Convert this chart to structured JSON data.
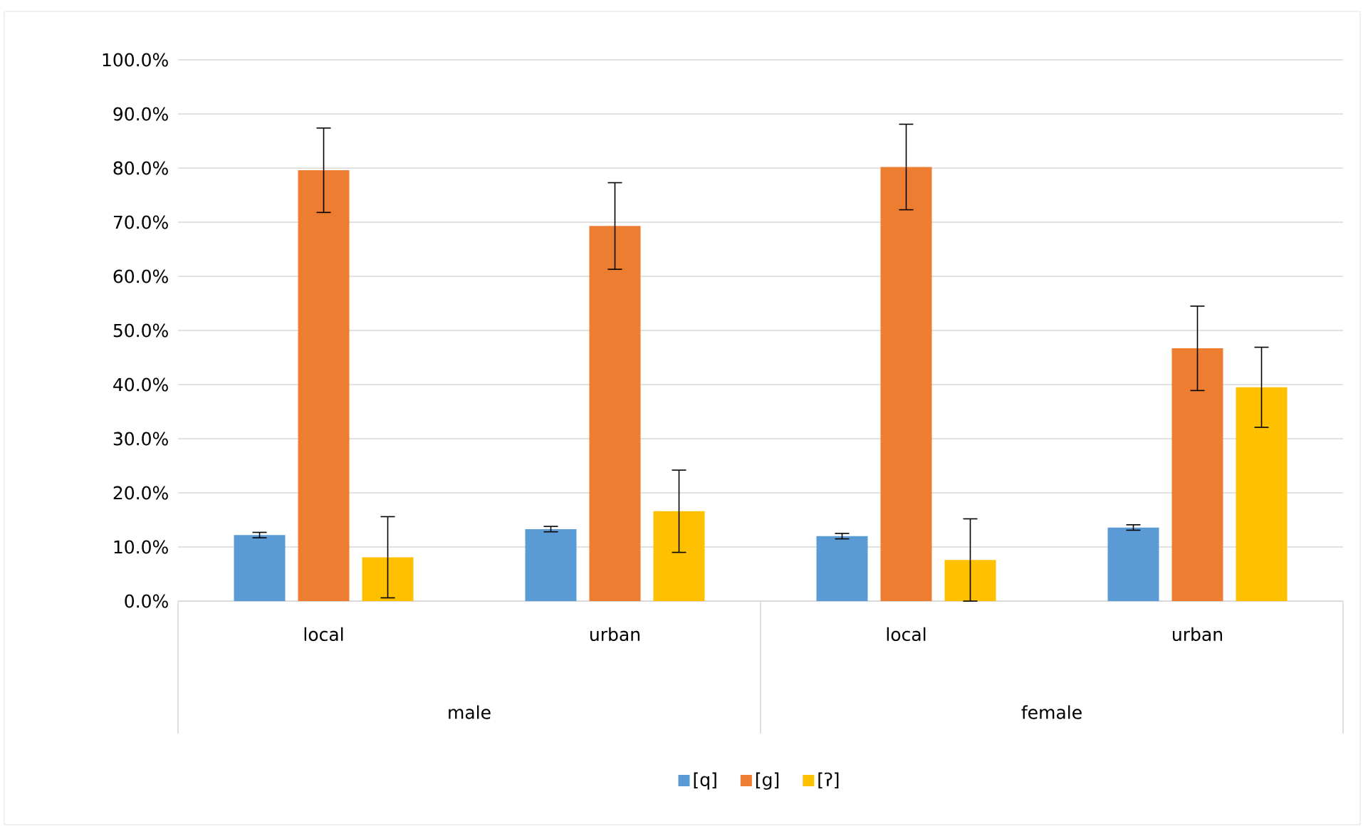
{
  "chart_data": {
    "type": "bar",
    "categories": [
      "local",
      "urban",
      "local",
      "urban"
    ],
    "annotations": [
      "male",
      "female"
    ],
    "series": [
      {
        "name": "[q]",
        "color": "#5b9bd5",
        "values": [
          12.2,
          13.3,
          12.0,
          13.6
        ],
        "errors": [
          0.5,
          0.5,
          0.5,
          0.5
        ]
      },
      {
        "name": "[g]",
        "color": "#ed7d31",
        "values": [
          79.6,
          69.3,
          80.2,
          46.7
        ],
        "errors": [
          7.8,
          8.0,
          7.9,
          7.8
        ]
      },
      {
        "name": "[ʔ]",
        "color": "#ffc000",
        "values": [
          8.1,
          16.6,
          7.6,
          39.5
        ],
        "errors": [
          7.5,
          7.6,
          7.6,
          7.4
        ]
      }
    ],
    "ylim": [
      0,
      100
    ],
    "yticks": [
      {
        "value": 0,
        "label": "0.0%"
      },
      {
        "value": 10,
        "label": "10.0%"
      },
      {
        "value": 20,
        "label": "20.0%"
      },
      {
        "value": 30,
        "label": "30.0%"
      },
      {
        "value": 40,
        "label": "40.0%"
      },
      {
        "value": 50,
        "label": "50.0%"
      },
      {
        "value": 60,
        "label": "60.0%"
      },
      {
        "value": 70,
        "label": "70.0%"
      },
      {
        "value": 80,
        "label": "80.0%"
      },
      {
        "value": 90,
        "label": "90.0%"
      },
      {
        "value": 100,
        "label": "100.0%"
      }
    ],
    "grid": "y",
    "legend": "bottom"
  }
}
